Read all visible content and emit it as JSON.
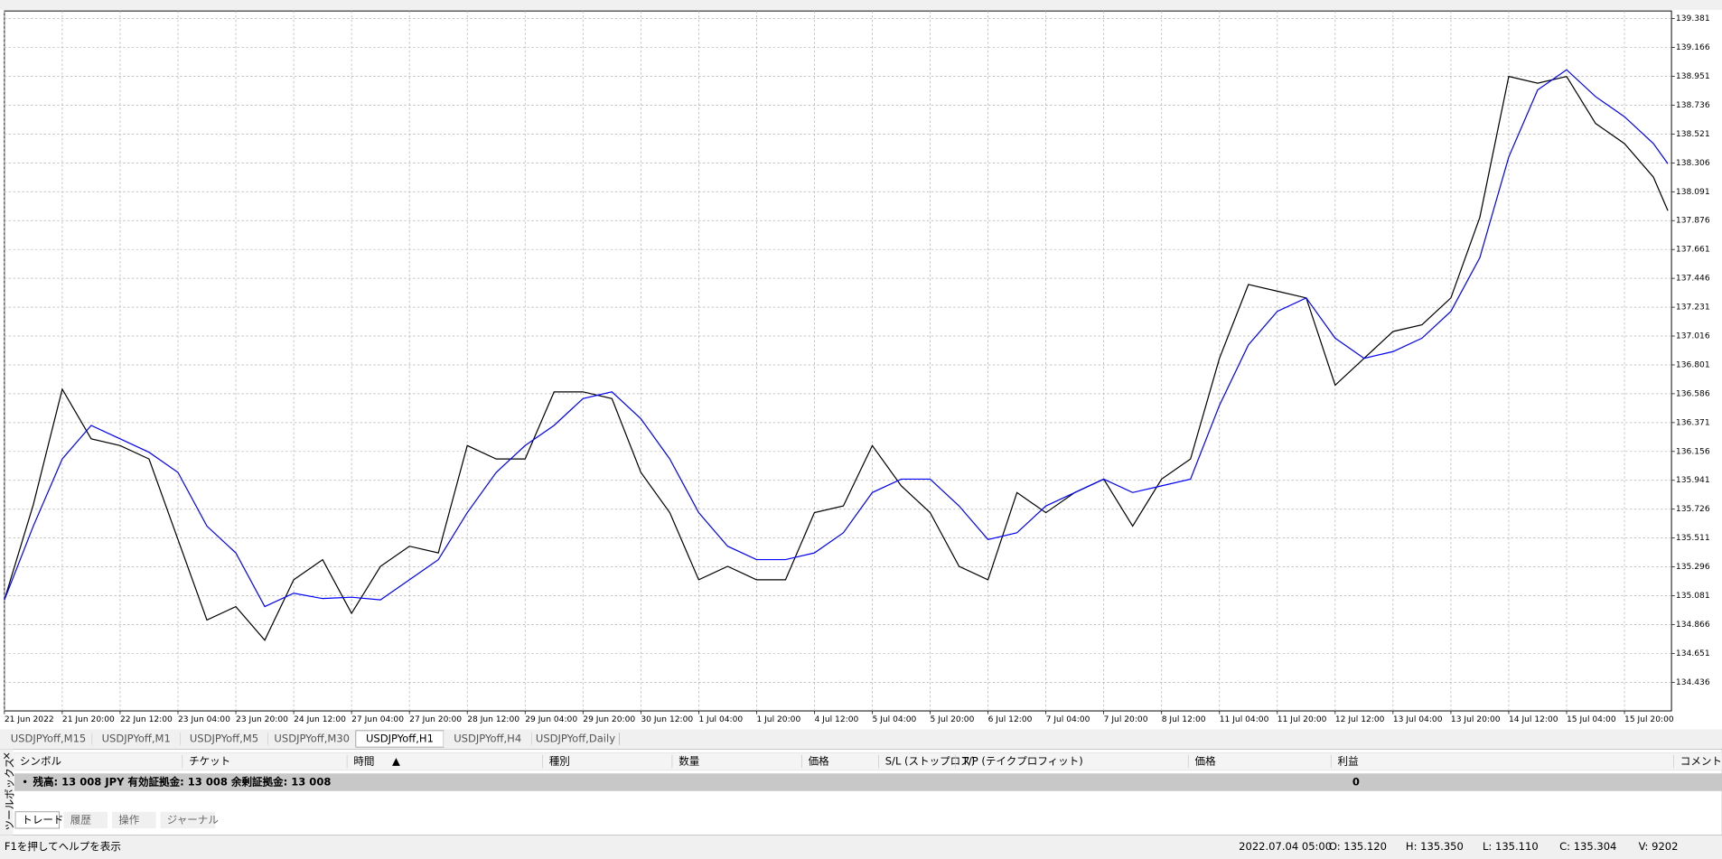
{
  "chart_data": {
    "type": "line",
    "x": [
      0,
      8,
      16,
      24,
      32,
      40,
      48,
      56,
      64,
      72,
      80,
      88,
      96,
      104,
      112,
      120,
      128,
      136,
      144,
      152,
      160,
      168,
      176,
      184,
      192,
      200,
      208,
      216,
      224,
      232,
      240,
      248,
      256,
      264,
      272,
      280,
      288,
      296,
      304,
      312,
      320,
      328,
      336,
      344,
      352,
      360,
      368,
      376,
      384,
      392,
      400,
      408,
      416,
      424,
      432,
      440,
      448,
      456,
      460
    ],
    "series": [
      {
        "color": "#000000",
        "values": [
          135.05,
          135.76,
          136.62,
          136.25,
          136.2,
          136.1,
          135.5,
          134.9,
          135.0,
          134.75,
          135.2,
          135.35,
          134.95,
          135.3,
          135.45,
          135.4,
          136.2,
          136.1,
          136.1,
          136.6,
          136.6,
          136.55,
          136.0,
          135.7,
          135.2,
          135.3,
          135.2,
          135.2,
          135.7,
          135.75,
          136.2,
          135.9,
          135.7,
          135.3,
          135.2,
          135.85,
          135.7,
          135.85,
          135.95,
          135.6,
          135.95,
          136.1,
          136.85,
          137.4,
          137.35,
          137.3,
          136.65,
          136.85,
          137.05,
          137.1,
          137.3,
          137.9,
          138.95,
          138.9,
          138.95,
          138.6,
          138.45,
          138.2,
          137.95
        ]
      },
      {
        "color": "#0000ff",
        "values": [
          135.05,
          135.6,
          136.1,
          136.35,
          136.25,
          136.15,
          136.0,
          135.6,
          135.4,
          135.0,
          135.1,
          135.06,
          135.07,
          135.05,
          135.2,
          135.35,
          135.7,
          136.0,
          136.2,
          136.35,
          136.55,
          136.6,
          136.4,
          136.1,
          135.7,
          135.45,
          135.35,
          135.35,
          135.4,
          135.55,
          135.85,
          135.95,
          135.95,
          135.75,
          135.5,
          135.55,
          135.75,
          135.85,
          135.95,
          135.85,
          135.9,
          135.95,
          136.5,
          136.95,
          137.2,
          137.3,
          137.0,
          136.85,
          136.9,
          137.0,
          137.2,
          137.6,
          138.35,
          138.85,
          139.0,
          138.8,
          138.65,
          138.45,
          138.3
        ]
      }
    ],
    "xlim": [
      0,
      461
    ],
    "ylim": [
      134.223,
      139.438
    ],
    "xticks": [
      {
        "value": 0,
        "label": "21 Jun 2022"
      },
      {
        "value": 16,
        "label": "21 Jun 20:00"
      },
      {
        "value": 32,
        "label": "22 Jun 12:00"
      },
      {
        "value": 48,
        "label": "23 Jun 04:00"
      },
      {
        "value": 64,
        "label": "23 Jun 20:00"
      },
      {
        "value": 80,
        "label": "24 Jun 12:00"
      },
      {
        "value": 96,
        "label": "27 Jun 04:00"
      },
      {
        "value": 112,
        "label": "27 Jun 20:00"
      },
      {
        "value": 128,
        "label": "28 Jun 12:00"
      },
      {
        "value": 144,
        "label": "29 Jun 04:00"
      },
      {
        "value": 160,
        "label": "29 Jun 20:00"
      },
      {
        "value": 176,
        "label": "30 Jun 12:00"
      },
      {
        "value": 192,
        "label": "1 Jul 04:00"
      },
      {
        "value": 208,
        "label": "1 Jul 20:00"
      },
      {
        "value": 224,
        "label": "4 Jul 12:00"
      },
      {
        "value": 240,
        "label": "5 Jul 04:00"
      },
      {
        "value": 256,
        "label": "5 Jul 20:00"
      },
      {
        "value": 272,
        "label": "6 Jul 12:00"
      },
      {
        "value": 288,
        "label": "7 Jul 04:00"
      },
      {
        "value": 304,
        "label": "7 Jul 20:00"
      },
      {
        "value": 320,
        "label": "8 Jul 12:00"
      },
      {
        "value": 336,
        "label": "11 Jul 04:00"
      },
      {
        "value": 352,
        "label": "11 Jul 20:00"
      },
      {
        "value": 368,
        "label": "12 Jul 12:00"
      },
      {
        "value": 384,
        "label": "13 Jul 04:00"
      },
      {
        "value": 400,
        "label": "13 Jul 20:00"
      },
      {
        "value": 416,
        "label": "14 Jul 12:00"
      },
      {
        "value": 432,
        "label": "15 Jul 04:00"
      },
      {
        "value": 448,
        "label": "15 Jul 20:00"
      }
    ],
    "yticks": [
      139.381,
      139.166,
      138.951,
      138.736,
      138.521,
      138.306,
      138.091,
      137.876,
      137.661,
      137.446,
      137.231,
      137.016,
      136.801,
      136.586,
      136.371,
      136.156,
      135.941,
      135.726,
      135.511,
      135.296,
      135.081,
      134.866,
      134.651,
      134.436
    ],
    "grid": true
  },
  "chart_tabs": {
    "tabs": [
      "USDJPYoff,M15",
      "USDJPYoff,M1",
      "USDJPYoff,M5",
      "USDJPYoff,M30",
      "USDJPYoff,H1",
      "USDJPYoff,H4",
      "USDJPYoff,Daily"
    ],
    "active": 4
  },
  "terminal": {
    "title": "ツールボックス",
    "columns": [
      "シンボル",
      "チケット",
      "時間",
      "種別",
      "数量",
      "価格",
      "S/L (ストップロス)",
      "T/P (テイクプロフィット)",
      "価格",
      "利益",
      "コメント"
    ],
    "balance": "残高: 13 008 JPY  有効証拠金: 13 008  余剰証拠金: 13 008",
    "profit": "0",
    "tabs": [
      "トレード",
      "履歴",
      "操作",
      "ジャーナル"
    ],
    "active": 0
  },
  "status_bar": {
    "help": "F1を押してヘルプを表示",
    "time": "2022.07.04 05:00",
    "open": "O: 135.120",
    "high": "H: 135.350",
    "low": "L: 135.110",
    "close": "C: 135.304",
    "volume": "V: 9202"
  }
}
